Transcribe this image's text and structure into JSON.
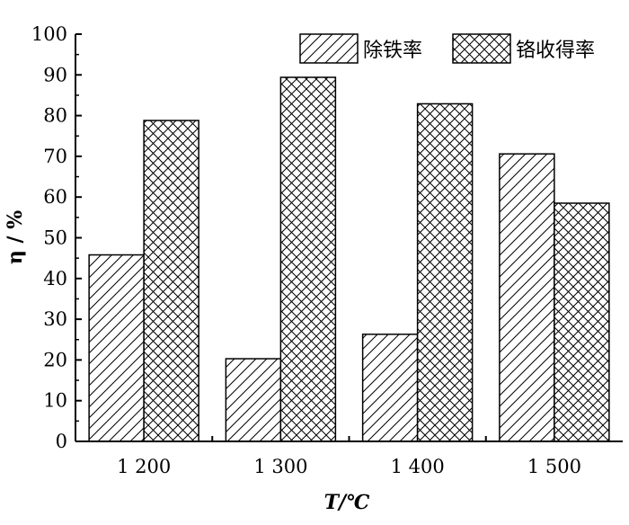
{
  "chart_data": {
    "type": "bar",
    "categories": [
      "1 200",
      "1 300",
      "1 400",
      "1 500"
    ],
    "series": [
      {
        "name": "除铁率",
        "pattern": "diagonal-hatch",
        "values": [
          45.8,
          20.3,
          26.3,
          70.6
        ]
      },
      {
        "name": "铬收得率",
        "pattern": "cross-hatch",
        "values": [
          78.8,
          89.4,
          82.9,
          58.5
        ]
      }
    ],
    "xlabel": "T/℃",
    "ylabel": "η / %",
    "ylim": [
      0,
      100
    ],
    "yticks": [
      0,
      10,
      20,
      30,
      40,
      50,
      60,
      70,
      80,
      90,
      100
    ],
    "grid": false,
    "legend_position": "top-right",
    "colors": {
      "stroke": "#000000",
      "fill": "#ffffff"
    }
  }
}
